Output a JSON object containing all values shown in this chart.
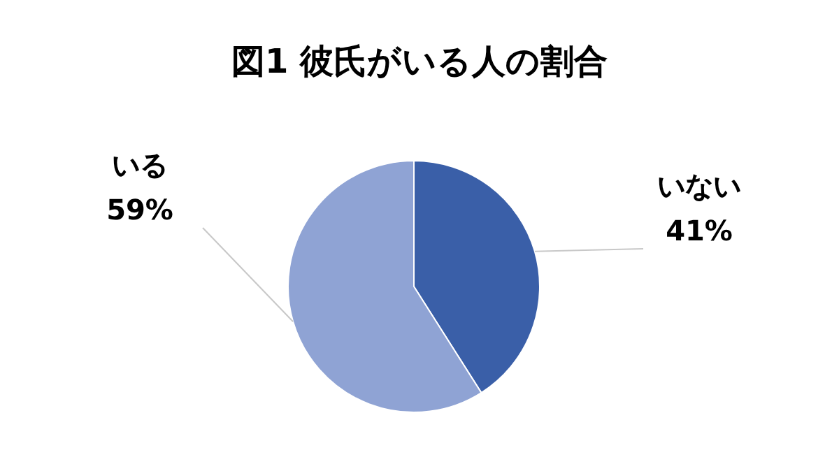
{
  "chart_data": {
    "type": "pie",
    "title": "図1 彼氏がいる人の割合",
    "categories": [
      "いない",
      "いる"
    ],
    "values": [
      41,
      59
    ],
    "colors": [
      "#3a5fa8",
      "#8fa3d4"
    ],
    "value_labels": [
      "41%",
      "59%"
    ]
  }
}
